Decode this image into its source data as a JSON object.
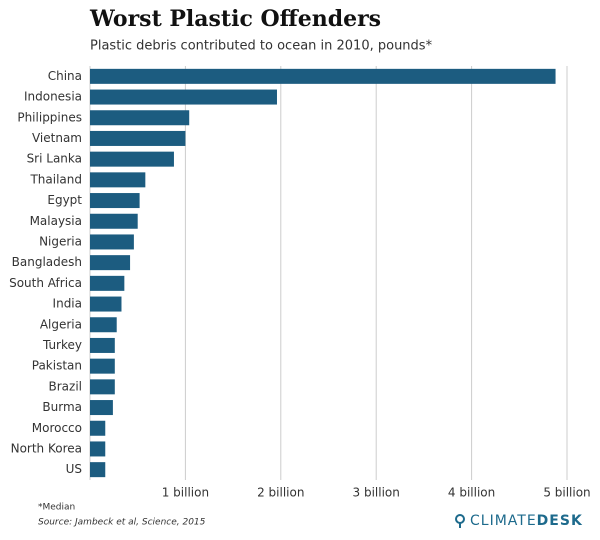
{
  "chart_data": {
    "type": "bar",
    "orientation": "horizontal",
    "title": "Worst Plastic Offenders",
    "subtitle": "Plastic debris contributed to ocean in 2010, pounds*",
    "categories": [
      "China",
      "Indonesia",
      "Philippines",
      "Vietnam",
      "Sri Lanka",
      "Thailand",
      "Egypt",
      "Malaysia",
      "Nigeria",
      "Bangladesh",
      "South Africa",
      "India",
      "Algeria",
      "Turkey",
      "Pakistan",
      "Brazil",
      "Burma",
      "Morocco",
      "North Korea",
      "US"
    ],
    "values": [
      4880000000,
      1960000000,
      1040000000,
      1000000000,
      880000000,
      580000000,
      520000000,
      500000000,
      460000000,
      420000000,
      360000000,
      330000000,
      280000000,
      260000000,
      260000000,
      260000000,
      240000000,
      160000000,
      160000000,
      160000000
    ],
    "color": "#1c5c80",
    "xlim": [
      0,
      5000000000
    ],
    "xticks": [
      {
        "value": 1000000000,
        "label": "1 billion"
      },
      {
        "value": 2000000000,
        "label": "2 billion"
      },
      {
        "value": 3000000000,
        "label": "3 billion"
      },
      {
        "value": 4000000000,
        "label": "4 billion"
      },
      {
        "value": 5000000000,
        "label": "5 billion"
      }
    ],
    "grid": true,
    "footnote": "*Median",
    "source": "Source: Jambeck et al, Science, 2015",
    "logo": [
      "CLIMATE",
      "DESK"
    ]
  }
}
